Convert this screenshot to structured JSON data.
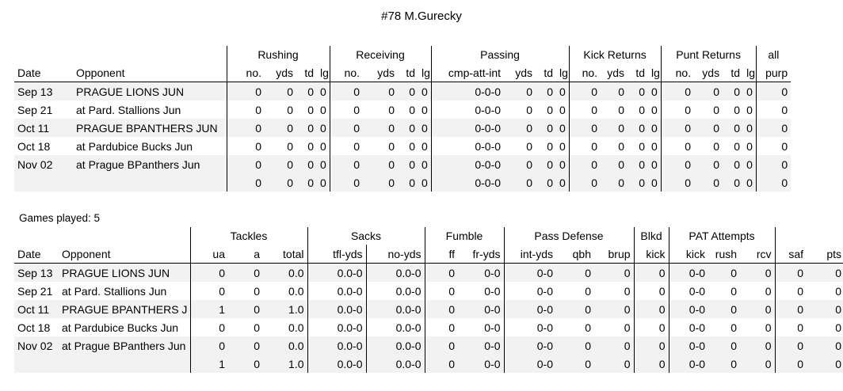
{
  "title": "#78 M.Gurecky",
  "games_played": "Games played: 5",
  "offense": {
    "groups": [
      {
        "label": ""
      },
      {
        "label": "Rushing"
      },
      {
        "label": "Receiving"
      },
      {
        "label": "Passing"
      },
      {
        "label": "Kick Returns"
      },
      {
        "label": "Punt Returns"
      },
      {
        "label": "all"
      }
    ],
    "headers": [
      "Date",
      "Opponent",
      "no.",
      "yds",
      "td",
      "lg",
      "no.",
      "yds",
      "td",
      "lg",
      "cmp-att-int",
      "yds",
      "td",
      "lg",
      "no.",
      "yds",
      "td",
      "lg",
      "no.",
      "yds",
      "td",
      "lg",
      "purp"
    ],
    "rows": [
      [
        "Sep 13",
        "PRAGUE LIONS JUN",
        "0",
        "0",
        "0",
        "0",
        "0",
        "0",
        "0",
        "0",
        "0-0-0",
        "0",
        "0",
        "0",
        "0",
        "0",
        "0",
        "0",
        "0",
        "0",
        "0",
        "0",
        "0"
      ],
      [
        "Sep 21",
        "at Pard. Stallions Jun",
        "0",
        "0",
        "0",
        "0",
        "0",
        "0",
        "0",
        "0",
        "0-0-0",
        "0",
        "0",
        "0",
        "0",
        "0",
        "0",
        "0",
        "0",
        "0",
        "0",
        "0",
        "0"
      ],
      [
        "Oct 11",
        "PRAGUE BPANTHERS JUN",
        "0",
        "0",
        "0",
        "0",
        "0",
        "0",
        "0",
        "0",
        "0-0-0",
        "0",
        "0",
        "0",
        "0",
        "0",
        "0",
        "0",
        "0",
        "0",
        "0",
        "0",
        "0"
      ],
      [
        "Oct 18",
        "at Pardubice Bucks Jun",
        "0",
        "0",
        "0",
        "0",
        "0",
        "0",
        "0",
        "0",
        "0-0-0",
        "0",
        "0",
        "0",
        "0",
        "0",
        "0",
        "0",
        "0",
        "0",
        "0",
        "0",
        "0"
      ],
      [
        "Nov 02",
        "at Prague BPanthers Jun",
        "0",
        "0",
        "0",
        "0",
        "0",
        "0",
        "0",
        "0",
        "0-0-0",
        "0",
        "0",
        "0",
        "0",
        "0",
        "0",
        "0",
        "0",
        "0",
        "0",
        "0",
        "0"
      ]
    ],
    "total": [
      "",
      "",
      "0",
      "0",
      "0",
      "0",
      "0",
      "0",
      "0",
      "0",
      "0-0-0",
      "0",
      "0",
      "0",
      "0",
      "0",
      "0",
      "0",
      "0",
      "0",
      "0",
      "0",
      "0"
    ]
  },
  "defense": {
    "groups": [
      {
        "label": ""
      },
      {
        "label": "Tackles"
      },
      {
        "label": "Sacks"
      },
      {
        "label": "Fumble"
      },
      {
        "label": "Pass Defense"
      },
      {
        "label": "Blkd"
      },
      {
        "label": "PAT Attempts"
      },
      {
        "label": ""
      }
    ],
    "headers": [
      "Date",
      "Opponent",
      "ua",
      "a",
      "total",
      "tfl-yds",
      "no-yds",
      "ff",
      "fr-yds",
      "int-yds",
      "qbh",
      "brup",
      "kick",
      "kick",
      "rush",
      "rcv",
      "saf",
      "pts"
    ],
    "rows": [
      [
        "Sep 13",
        "PRAGUE LIONS JUN",
        "0",
        "0",
        "0.0",
        "0.0-0",
        "0.0-0",
        "0",
        "0-0",
        "0-0",
        "0",
        "0",
        "0",
        "0-0",
        "0",
        "0",
        "0",
        "0"
      ],
      [
        "Sep 21",
        "at Pard. Stallions Jun",
        "0",
        "0",
        "0.0",
        "0.0-0",
        "0.0-0",
        "0",
        "0-0",
        "0-0",
        "0",
        "0",
        "0",
        "0-0",
        "0",
        "0",
        "0",
        "0"
      ],
      [
        "Oct 11",
        "PRAGUE BPANTHERS J",
        "1",
        "0",
        "1.0",
        "0.0-0",
        "0.0-0",
        "0",
        "0-0",
        "0-0",
        "0",
        "0",
        "0",
        "0-0",
        "0",
        "0",
        "0",
        "0"
      ],
      [
        "Oct 18",
        "at Pardubice Bucks Jun",
        "0",
        "0",
        "0.0",
        "0.0-0",
        "0.0-0",
        "0",
        "0-0",
        "0-0",
        "0",
        "0",
        "0",
        "0-0",
        "0",
        "0",
        "0",
        "0"
      ],
      [
        "Nov 02",
        "at Prague BPanthers Jun",
        "0",
        "0",
        "0.0",
        "0.0-0",
        "0.0-0",
        "0",
        "0-0",
        "0-0",
        "0",
        "0",
        "0",
        "0-0",
        "0",
        "0",
        "0",
        "0"
      ]
    ],
    "total": [
      "",
      "",
      "1",
      "0",
      "1.0",
      "0.0-0",
      "0.0-0",
      "0",
      "0-0",
      "0-0",
      "0",
      "0",
      "0",
      "0-0",
      "0",
      "0",
      "0",
      "0"
    ]
  }
}
